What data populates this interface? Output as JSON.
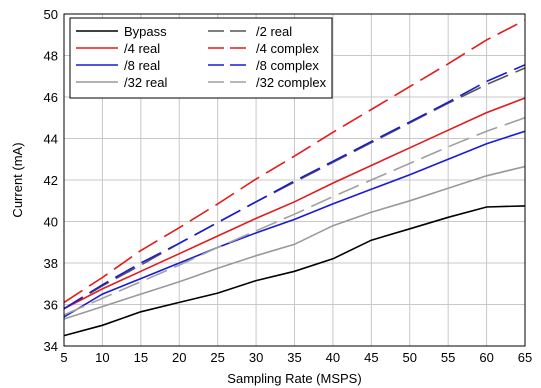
{
  "chart_data": {
    "type": "line",
    "title": "",
    "xlabel": "Sampling Rate (MSPS)",
    "ylabel": "Current (mA)",
    "xlim": [
      5,
      65
    ],
    "ylim": [
      34,
      50
    ],
    "xticks": [
      5,
      10,
      15,
      20,
      25,
      30,
      35,
      40,
      45,
      50,
      55,
      60,
      65
    ],
    "yticks": [
      34,
      36,
      38,
      40,
      42,
      44,
      46,
      48,
      50
    ],
    "grid": true,
    "legend_position": "top-left",
    "legend_columns": 2,
    "x": [
      5,
      10,
      15,
      20,
      25,
      30,
      35,
      40,
      45,
      50,
      55,
      60,
      65
    ],
    "series": [
      {
        "name": "Bypass",
        "color": "#000000",
        "dash": "solid",
        "values": [
          34.5,
          35.0,
          35.65,
          36.1,
          36.55,
          37.15,
          37.6,
          38.2,
          39.1,
          39.65,
          40.2,
          40.7,
          40.75
        ]
      },
      {
        "name": "/2 real",
        "color": "#555555",
        "dash": "dashed",
        "values": [
          35.8,
          36.9,
          37.9,
          38.95,
          39.95,
          40.95,
          41.9,
          42.85,
          43.8,
          44.75,
          45.7,
          46.6,
          47.4
        ]
      },
      {
        "name": "/4 real",
        "color": "#e41a1c",
        "dash": "solid",
        "values": [
          35.8,
          36.75,
          37.6,
          38.45,
          39.3,
          40.15,
          40.95,
          41.85,
          42.7,
          43.55,
          44.4,
          45.25,
          45.95
        ]
      },
      {
        "name": "/4 complex",
        "color": "#e41a1c",
        "dash": "dashed",
        "values": [
          36.1,
          37.3,
          38.6,
          39.7,
          40.85,
          42.05,
          43.15,
          44.3,
          45.4,
          46.5,
          47.6,
          48.75,
          49.7
        ]
      },
      {
        "name": "/8 real",
        "color": "#1a1ad6",
        "dash": "solid",
        "values": [
          35.4,
          36.5,
          37.25,
          38.0,
          38.75,
          39.45,
          40.1,
          40.85,
          41.55,
          42.25,
          43.0,
          43.75,
          44.35
        ]
      },
      {
        "name": "/8 complex",
        "color": "#1a1ad6",
        "dash": "dashed",
        "values": [
          35.8,
          36.95,
          38.0,
          38.95,
          39.95,
          40.95,
          41.95,
          42.9,
          43.85,
          44.8,
          45.75,
          46.75,
          47.55
        ]
      },
      {
        "name": "/32 real",
        "color": "#999999",
        "dash": "solid",
        "values": [
          35.3,
          35.9,
          36.5,
          37.1,
          37.75,
          38.35,
          38.9,
          39.8,
          40.45,
          41.0,
          41.6,
          42.2,
          42.65
        ]
      },
      {
        "name": "/32 complex",
        "color": "#a0a0a0",
        "dash": "dashed",
        "values": [
          35.5,
          36.3,
          37.1,
          37.9,
          38.75,
          39.55,
          40.35,
          41.2,
          42.0,
          42.8,
          43.6,
          44.35,
          45.0
        ]
      }
    ]
  }
}
